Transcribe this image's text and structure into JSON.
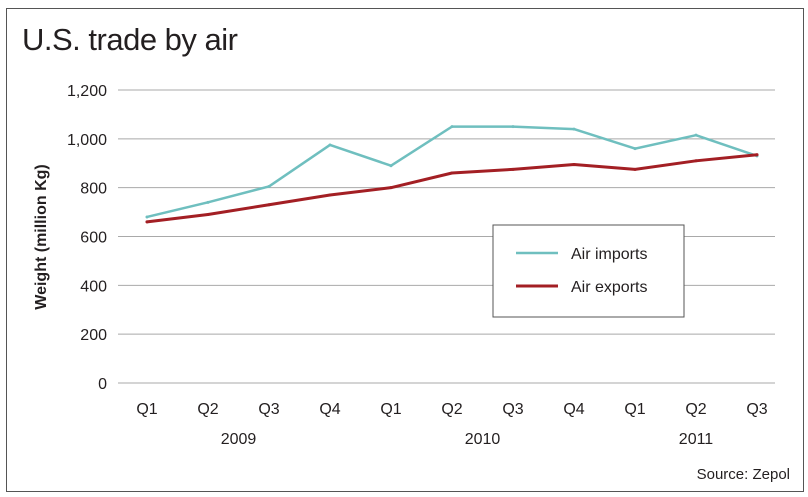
{
  "title": "U.S. trade by air",
  "source": "Source: Zepol",
  "colors": {
    "imports": "#6fbfbf",
    "exports": "#a31f24",
    "grid": "#a9a9a9"
  },
  "chart_data": {
    "type": "line",
    "title": "U.S. trade by air",
    "xlabel": "",
    "ylabel": "Weight (million Kg)",
    "ylim": [
      0,
      1200
    ],
    "yticks": [
      "0",
      "200",
      "400",
      "600",
      "800",
      "1,000",
      "1,200"
    ],
    "categories": [
      "Q1",
      "Q2",
      "Q3",
      "Q4",
      "Q1",
      "Q2",
      "Q3",
      "Q4",
      "Q1",
      "Q2",
      "Q3"
    ],
    "years": [
      {
        "label": "2009",
        "from": 0,
        "to": 3
      },
      {
        "label": "2010",
        "from": 4,
        "to": 7
      },
      {
        "label": "2011",
        "from": 8,
        "to": 10
      }
    ],
    "grid": true,
    "legend_position": "center-right",
    "series": [
      {
        "name": "Air imports",
        "color": "#6fbfbf",
        "values": [
          680,
          740,
          805,
          975,
          890,
          1050,
          1050,
          1040,
          960,
          1015,
          930
        ]
      },
      {
        "name": "Air exports",
        "color": "#a31f24",
        "values": [
          660,
          690,
          730,
          770,
          800,
          860,
          875,
          895,
          875,
          910,
          935
        ]
      }
    ]
  }
}
